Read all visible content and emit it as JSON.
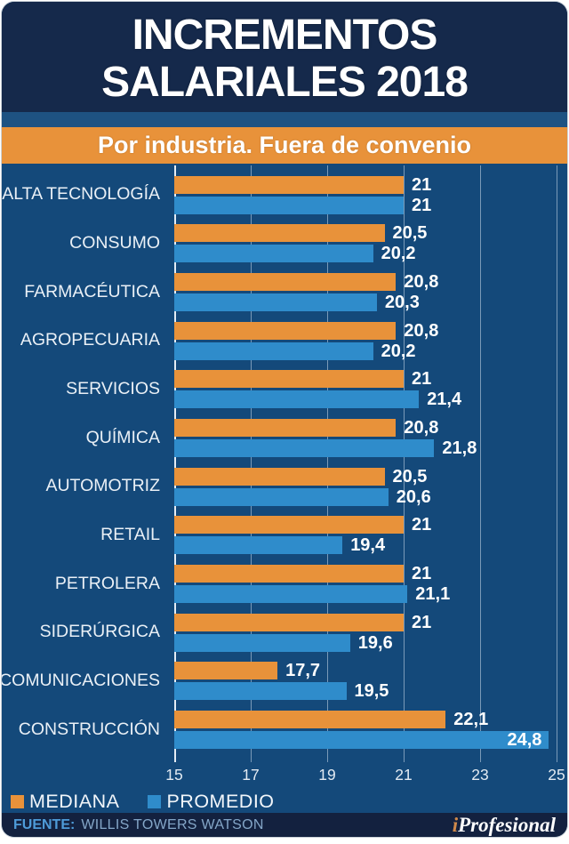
{
  "header": {
    "title_line1": "INCREMENTOS",
    "title_line2": "SALARIALES 2018"
  },
  "subtitle": "Por industria. Fuera de convenio",
  "chart_data": {
    "type": "bar",
    "orientation": "horizontal",
    "title": "INCREMENTOS SALARIALES 2018",
    "subtitle": "Por industria. Fuera de convenio",
    "categories": [
      "ALTA TECNOLOGÍA",
      "CONSUMO",
      "FARMACÉUTICA",
      "AGROPECUARIA",
      "SERVICIOS",
      "QUÍMICA",
      "AUTOMOTRIZ",
      "RETAIL",
      "PETROLERA",
      "SIDERÚRGICA",
      "COMUNICACIONES",
      "CONSTRUCCIÓN"
    ],
    "series": [
      {
        "name": "MEDIANA",
        "color": "#E8923A",
        "values": [
          21,
          20.5,
          20.8,
          20.8,
          21,
          20.8,
          20.5,
          21,
          21,
          21,
          17.7,
          22.1
        ],
        "labels": [
          "21",
          "20,5",
          "20,8",
          "20,8",
          "21",
          "20,8",
          "20,5",
          "21",
          "21",
          "21",
          "17,7",
          "22,1"
        ]
      },
      {
        "name": "PROMEDIO",
        "color": "#2F8CCB",
        "values": [
          21,
          20.2,
          20.3,
          20.2,
          21.4,
          21.8,
          20.6,
          19.4,
          21.1,
          19.6,
          19.5,
          24.8
        ],
        "labels": [
          "21",
          "20,2",
          "20,3",
          "20,2",
          "21,4",
          "21,8",
          "20,6",
          "19,4",
          "21,1",
          "19,6",
          "19,5",
          "24,8"
        ]
      }
    ],
    "xlim": [
      15,
      25
    ],
    "xticks": [
      "15",
      "17",
      "19",
      "21",
      "23",
      "25"
    ],
    "grid": true,
    "legend_position": "bottom-left"
  },
  "legend": {
    "items": [
      {
        "label": "MEDIANA",
        "color": "#E8923A"
      },
      {
        "label": "PROMEDIO",
        "color": "#2F8CCB"
      }
    ]
  },
  "footer": {
    "source_label": "FUENTE:",
    "source_text": "WILLIS TOWERS WATSON",
    "brand_i": "i",
    "brand_rest": "Profesional"
  },
  "colors": {
    "header_bg": "#15294B",
    "strip_bg": "#1E5282",
    "band_bg": "#E8923A",
    "chart_bg": "#14497A",
    "footer_bg": "#13213F",
    "mediana_bar": "#E8923A",
    "promedio_bar": "#2F8CCB"
  }
}
